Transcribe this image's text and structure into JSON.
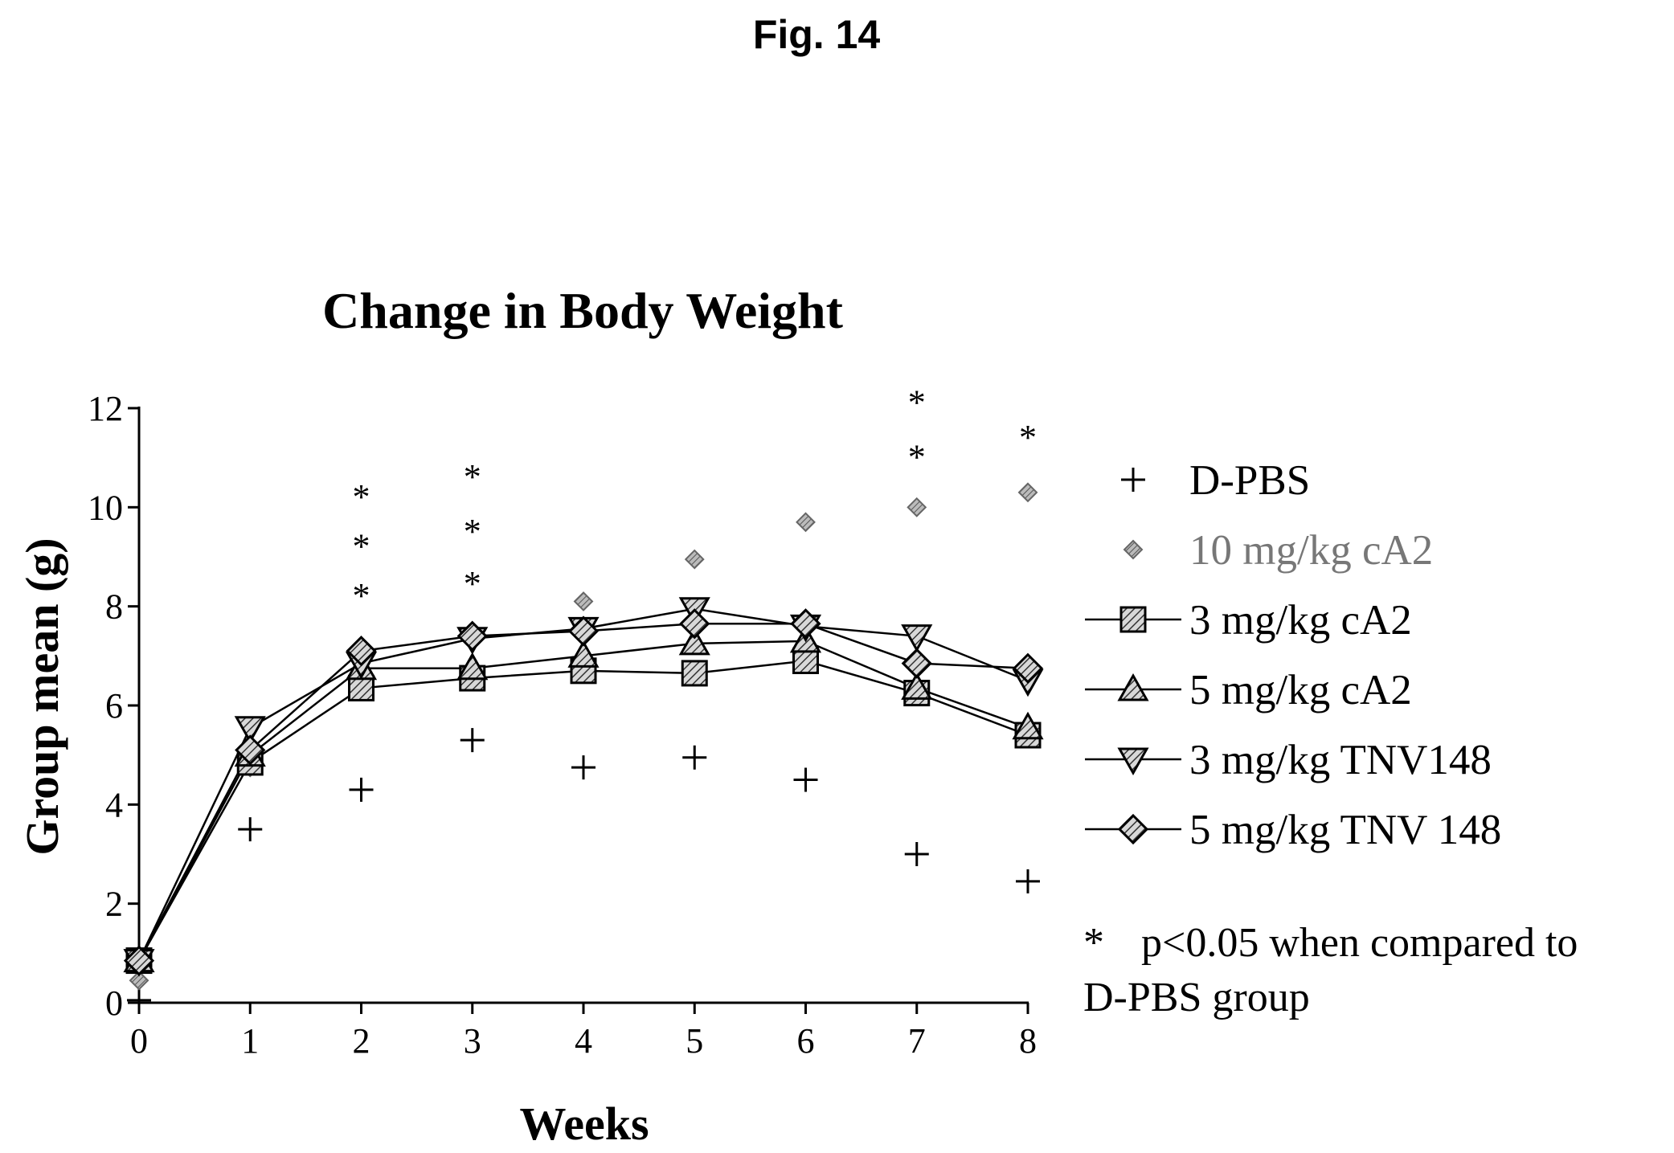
{
  "figure_label": "Fig. 14",
  "note": {
    "star": "*",
    "line1": "p<0.05 when compared to",
    "line2": "D-PBS group"
  },
  "chart_data": {
    "type": "line",
    "title": "Change in Body Weight",
    "xlabel": "Weeks",
    "ylabel": "Group mean (g)",
    "x": [
      0,
      1,
      2,
      3,
      4,
      5,
      6,
      7,
      8
    ],
    "xlim": [
      0,
      8
    ],
    "ylim": [
      0,
      12
    ],
    "yticks": [
      0,
      2,
      4,
      6,
      8,
      10,
      12
    ],
    "grid": false,
    "legend_position": "right",
    "series": [
      {
        "name": "D-PBS",
        "marker": "plus",
        "line": false,
        "color": "#000000",
        "values": [
          0.05,
          3.5,
          4.3,
          5.3,
          4.75,
          4.95,
          4.5,
          3.0,
          2.45
        ]
      },
      {
        "name": "10 mg/kg cA2",
        "marker": "diamond-small",
        "line": false,
        "color": "#777777",
        "values": [
          0.45,
          4.75,
          7.1,
          7.5,
          8.1,
          8.95,
          9.7,
          10.0,
          10.3
        ]
      },
      {
        "name": "3 mg/kg cA2",
        "marker": "square",
        "line": true,
        "color": "#000000",
        "values": [
          0.85,
          4.85,
          6.35,
          6.55,
          6.7,
          6.65,
          6.9,
          6.25,
          5.4
        ]
      },
      {
        "name": "5 mg/kg cA2",
        "marker": "triangle-up",
        "line": true,
        "color": "#000000",
        "values": [
          0.85,
          5.0,
          6.75,
          6.75,
          7.0,
          7.25,
          7.3,
          6.35,
          5.55
        ]
      },
      {
        "name": "3 mg/kg TNV148",
        "marker": "triangle-down",
        "line": true,
        "color": "#000000",
        "values": [
          0.85,
          5.55,
          6.85,
          7.35,
          7.55,
          7.95,
          7.6,
          7.4,
          6.5
        ]
      },
      {
        "name": "5 mg/kg TNV 148",
        "marker": "diamond",
        "line": true,
        "color": "#000000",
        "values": [
          0.85,
          5.1,
          7.1,
          7.4,
          7.5,
          7.65,
          7.65,
          6.85,
          6.75
        ]
      }
    ],
    "annotations": [
      {
        "x": 2,
        "y": 10.3,
        "text": "*"
      },
      {
        "x": 2,
        "y": 9.3,
        "text": "*"
      },
      {
        "x": 2,
        "y": 8.3,
        "text": "*"
      },
      {
        "x": 3,
        "y": 10.7,
        "text": "*"
      },
      {
        "x": 3,
        "y": 9.6,
        "text": "*"
      },
      {
        "x": 3,
        "y": 8.55,
        "text": "*"
      },
      {
        "x": 7,
        "y": 12.2,
        "text": "*"
      },
      {
        "x": 7,
        "y": 11.1,
        "text": "*"
      },
      {
        "x": 8,
        "y": 11.5,
        "text": "*"
      }
    ]
  }
}
